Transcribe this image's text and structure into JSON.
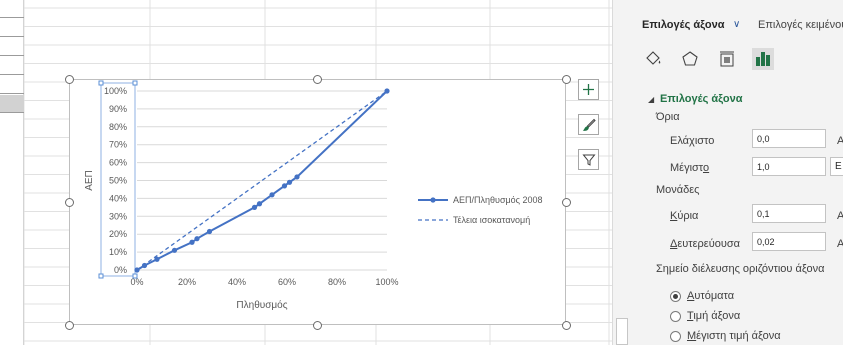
{
  "chart_data": {
    "type": "line",
    "title": "",
    "xlabel": "Πληθυσμός",
    "ylabel": "ΑΕΠ",
    "xlim": [
      0,
      1
    ],
    "ylim": [
      0,
      1
    ],
    "grid": true,
    "legend_position": "right",
    "x_tick_labels": [
      "0%",
      "20%",
      "40%",
      "60%",
      "80%",
      "100%"
    ],
    "y_tick_labels": [
      "0%",
      "10%",
      "20%",
      "30%",
      "40%",
      "50%",
      "60%",
      "70%",
      "80%",
      "90%",
      "100%"
    ],
    "series": [
      {
        "name": "ΑΕΠ/Πληθυσμός 2008",
        "style": "solid-markers",
        "color": "#4472c4",
        "x": [
          0,
          0.03,
          0.08,
          0.15,
          0.22,
          0.24,
          0.29,
          0.47,
          0.49,
          0.54,
          0.59,
          0.61,
          0.64,
          1.0
        ],
        "y": [
          0,
          0.025,
          0.06,
          0.11,
          0.155,
          0.175,
          0.215,
          0.35,
          0.37,
          0.42,
          0.47,
          0.49,
          0.52,
          1.0
        ]
      },
      {
        "name": "Τέλεια ισοκατανομή",
        "style": "dashed",
        "color": "#4472c4",
        "x": [
          0,
          1
        ],
        "y": [
          0,
          1
        ]
      }
    ]
  },
  "chart_tools": {
    "add_element_icon": "plus-icon",
    "styles_icon": "brush-icon",
    "filter_icon": "funnel-icon"
  },
  "pane": {
    "tab_axis_options": "Επιλογές άξονα",
    "tab_text_options": "Επιλογές κειμένου",
    "icons": [
      "paint-bucket-icon",
      "pentagon-icon",
      "size-properties-icon",
      "bar-chart-icon"
    ],
    "accent_color": "#217346",
    "section_title": "Επιλογές άξονα",
    "bounds_heading": "Όρια",
    "min_label": "Ελάχιστο",
    "min_value": "0,0",
    "min_auto_cut": "Α",
    "max_label": "Μέγιστο",
    "max_value": "1,0",
    "max_auto_cut": "Ε",
    "units_heading": "Μονάδες",
    "major_label": "Κύρια",
    "major_value": "0,1",
    "major_auto_cut": "Α",
    "minor_label": "Δευτερεύουσα",
    "minor_value": "0,02",
    "minor_auto_cut": "Α",
    "crosses_heading": "Σημείο διέλευσης οριζόντιου άξονα",
    "radio_auto": "Αυτόματα",
    "radio_value": "Τιμή άξονα",
    "radio_max": "Μέγιστη τιμή άξονα"
  }
}
